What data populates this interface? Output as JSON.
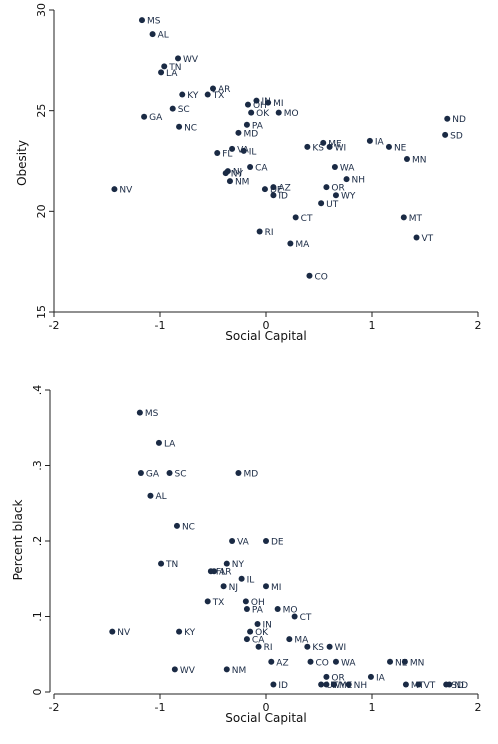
{
  "chart_data": [
    {
      "type": "scatter",
      "title": "",
      "xlabel": "Social Capital",
      "ylabel": "Obesity",
      "xlim": [
        -2,
        2
      ],
      "ylim": [
        15,
        30
      ],
      "x_ticks": [
        "-2",
        "-1",
        "0",
        "1",
        "2"
      ],
      "y_ticks": [
        "15",
        "20",
        "25",
        "30"
      ],
      "grid": false,
      "color": "#1a2a44",
      "points": [
        {
          "label": "MS",
          "x": -1.17,
          "y": 29.5
        },
        {
          "label": "AL",
          "x": -1.07,
          "y": 28.8
        },
        {
          "label": "WV",
          "x": -0.83,
          "y": 27.6
        },
        {
          "label": "TN",
          "x": -0.96,
          "y": 27.2
        },
        {
          "label": "LA",
          "x": -0.99,
          "y": 26.9
        },
        {
          "label": "KY",
          "x": -0.79,
          "y": 25.8
        },
        {
          "label": "TX",
          "x": -0.55,
          "y": 25.8
        },
        {
          "label": "AR",
          "x": -0.5,
          "y": 26.1
        },
        {
          "label": "SC",
          "x": -0.88,
          "y": 25.1
        },
        {
          "label": "GA",
          "x": -1.15,
          "y": 24.7
        },
        {
          "label": "NC",
          "x": -0.82,
          "y": 24.2
        },
        {
          "label": "IN",
          "x": -0.09,
          "y": 25.5
        },
        {
          "label": "OH",
          "x": -0.17,
          "y": 25.3
        },
        {
          "label": "MI",
          "x": 0.02,
          "y": 25.4
        },
        {
          "label": "OK",
          "x": -0.14,
          "y": 24.9
        },
        {
          "label": "MO",
          "x": 0.12,
          "y": 24.9
        },
        {
          "label": "PA",
          "x": -0.18,
          "y": 24.3
        },
        {
          "label": "MD",
          "x": -0.26,
          "y": 23.9
        },
        {
          "label": "ND",
          "x": 1.71,
          "y": 24.6
        },
        {
          "label": "SD",
          "x": 1.69,
          "y": 23.8
        },
        {
          "label": "IA",
          "x": 0.98,
          "y": 23.5
        },
        {
          "label": "NE",
          "x": 1.16,
          "y": 23.2
        },
        {
          "label": "MN",
          "x": 1.33,
          "y": 22.6
        },
        {
          "label": "KS",
          "x": 0.39,
          "y": 23.2
        },
        {
          "label": "ME",
          "x": 0.54,
          "y": 23.4
        },
        {
          "label": "WI",
          "x": 0.6,
          "y": 23.2
        },
        {
          "label": "VA",
          "x": -0.32,
          "y": 23.1
        },
        {
          "label": "IL",
          "x": -0.21,
          "y": 23.0
        },
        {
          "label": "FL",
          "x": -0.46,
          "y": 22.9
        },
        {
          "label": "CA",
          "x": -0.15,
          "y": 22.2
        },
        {
          "label": "NJ",
          "x": -0.36,
          "y": 22.0
        },
        {
          "label": "NY",
          "x": -0.38,
          "y": 21.9
        },
        {
          "label": "NM",
          "x": -0.34,
          "y": 21.5
        },
        {
          "label": "WA",
          "x": 0.65,
          "y": 22.2
        },
        {
          "label": "NH",
          "x": 0.76,
          "y": 21.6
        },
        {
          "label": "OR",
          "x": 0.57,
          "y": 21.2
        },
        {
          "label": "WY",
          "x": 0.66,
          "y": 20.8
        },
        {
          "label": "DE",
          "x": -0.01,
          "y": 21.1
        },
        {
          "label": "AZ",
          "x": 0.07,
          "y": 21.2
        },
        {
          "label": "ID",
          "x": 0.07,
          "y": 20.8
        },
        {
          "label": "UT",
          "x": 0.52,
          "y": 20.4
        },
        {
          "label": "NV",
          "x": -1.43,
          "y": 21.1
        },
        {
          "label": "MT",
          "x": 1.3,
          "y": 19.7
        },
        {
          "label": "CT",
          "x": 0.28,
          "y": 19.7
        },
        {
          "label": "VT",
          "x": 1.42,
          "y": 18.7
        },
        {
          "label": "RI",
          "x": -0.06,
          "y": 19.0
        },
        {
          "label": "MA",
          "x": 0.23,
          "y": 18.4
        },
        {
          "label": "CO",
          "x": 0.41,
          "y": 16.8
        }
      ]
    },
    {
      "type": "scatter",
      "title": "",
      "xlabel": "Social Capital",
      "ylabel": "Percent black",
      "xlim": [
        -2,
        2
      ],
      "ylim": [
        0,
        0.4
      ],
      "x_ticks": [
        "-2",
        "-1",
        "0",
        "1",
        "2"
      ],
      "y_ticks": [
        "0",
        ".1",
        ".2",
        ".3",
        ".4"
      ],
      "grid": false,
      "color": "#1a2a44",
      "points": [
        {
          "label": "MS",
          "x": -1.19,
          "y": 0.37
        },
        {
          "label": "LA",
          "x": -1.01,
          "y": 0.33
        },
        {
          "label": "GA",
          "x": -1.18,
          "y": 0.29
        },
        {
          "label": "SC",
          "x": -0.91,
          "y": 0.29
        },
        {
          "label": "MD",
          "x": -0.26,
          "y": 0.29
        },
        {
          "label": "AL",
          "x": -1.09,
          "y": 0.26
        },
        {
          "label": "NC",
          "x": -0.84,
          "y": 0.22
        },
        {
          "label": "VA",
          "x": -0.32,
          "y": 0.2
        },
        {
          "label": "DE",
          "x": 0.0,
          "y": 0.2
        },
        {
          "label": "TN",
          "x": -0.99,
          "y": 0.17
        },
        {
          "label": "NY",
          "x": -0.37,
          "y": 0.17
        },
        {
          "label": "AR",
          "x": -0.49,
          "y": 0.16
        },
        {
          "label": "FL",
          "x": -0.52,
          "y": 0.16
        },
        {
          "label": "IL",
          "x": -0.23,
          "y": 0.15
        },
        {
          "label": "NJ",
          "x": -0.4,
          "y": 0.14
        },
        {
          "label": "MI",
          "x": 0.0,
          "y": 0.14
        },
        {
          "label": "TX",
          "x": -0.55,
          "y": 0.12
        },
        {
          "label": "OH",
          "x": -0.19,
          "y": 0.12
        },
        {
          "label": "PA",
          "x": -0.18,
          "y": 0.11
        },
        {
          "label": "MO",
          "x": 0.11,
          "y": 0.11
        },
        {
          "label": "CT",
          "x": 0.27,
          "y": 0.1
        },
        {
          "label": "IN",
          "x": -0.08,
          "y": 0.09
        },
        {
          "label": "OK",
          "x": -0.15,
          "y": 0.08
        },
        {
          "label": "NV",
          "x": -1.45,
          "y": 0.08
        },
        {
          "label": "KY",
          "x": -0.82,
          "y": 0.08
        },
        {
          "label": "CA",
          "x": -0.18,
          "y": 0.07
        },
        {
          "label": "MA",
          "x": 0.22,
          "y": 0.07
        },
        {
          "label": "RI",
          "x": -0.07,
          "y": 0.06
        },
        {
          "label": "KS",
          "x": 0.39,
          "y": 0.06
        },
        {
          "label": "WI",
          "x": 0.6,
          "y": 0.06
        },
        {
          "label": "AZ",
          "x": 0.05,
          "y": 0.04
        },
        {
          "label": "CO",
          "x": 0.42,
          "y": 0.04
        },
        {
          "label": "WA",
          "x": 0.66,
          "y": 0.04
        },
        {
          "label": "NE",
          "x": 1.17,
          "y": 0.04
        },
        {
          "label": "MN",
          "x": 1.31,
          "y": 0.04
        },
        {
          "label": "WV",
          "x": -0.86,
          "y": 0.03
        },
        {
          "label": "NM",
          "x": -0.37,
          "y": 0.03
        },
        {
          "label": "OR",
          "x": 0.57,
          "y": 0.02
        },
        {
          "label": "IA",
          "x": 0.99,
          "y": 0.02
        },
        {
          "label": "ID",
          "x": 0.07,
          "y": 0.01
        },
        {
          "label": "UT",
          "x": 0.52,
          "y": 0.01
        },
        {
          "label": "WY",
          "x": 0.57,
          "y": 0.01
        },
        {
          "label": "ME",
          "x": 0.64,
          "y": 0.01
        },
        {
          "label": "NH",
          "x": 0.78,
          "y": 0.01
        },
        {
          "label": "MT",
          "x": 1.32,
          "y": 0.01
        },
        {
          "label": "VT",
          "x": 1.44,
          "y": 0.01
        },
        {
          "label": "SD",
          "x": 1.7,
          "y": 0.01
        },
        {
          "label": "ND",
          "x": 1.73,
          "y": 0.01
        }
      ]
    }
  ]
}
